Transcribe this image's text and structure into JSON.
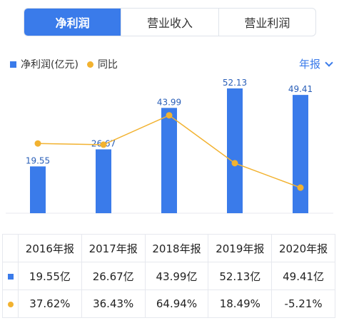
{
  "tabs": [
    {
      "label": "净利润",
      "active": true
    },
    {
      "label": "营业收入",
      "active": false
    },
    {
      "label": "营业利润",
      "active": false
    }
  ],
  "legend": {
    "bar_label": "净利润(亿元)",
    "line_label": "同比"
  },
  "period_selector": "年报",
  "colors": {
    "bar": "#3a7bea",
    "line": "#f2b230",
    "positive": "#d63a3a",
    "negative": "#2a9d4a"
  },
  "chart_data": {
    "type": "bar",
    "categories": [
      "2016年报",
      "2017年报",
      "2018年报",
      "2019年报",
      "2020年报"
    ],
    "series": [
      {
        "name": "净利润(亿元)",
        "type": "bar",
        "values": [
          19.55,
          26.67,
          43.99,
          52.13,
          49.41
        ],
        "labels": [
          "19.55",
          "26.67",
          "43.99",
          "52.13",
          "49.41"
        ]
      },
      {
        "name": "同比",
        "type": "line",
        "values": [
          37.62,
          36.43,
          64.94,
          18.49,
          -5.21
        ]
      }
    ],
    "y_bar_range": [
      0,
      56
    ],
    "y_line_range": [
      -30,
      100
    ]
  },
  "table": {
    "headers": [
      "2016年报",
      "2017年报",
      "2018年报",
      "2019年报",
      "2020年报"
    ],
    "rows": [
      {
        "icon": "bar-square-icon",
        "cells": [
          "19.55亿",
          "26.67亿",
          "43.99亿",
          "52.13亿",
          "49.41亿"
        ]
      },
      {
        "icon": "line-dot-icon",
        "cells": [
          "37.62%",
          "36.43%",
          "64.94%",
          "18.49%",
          "-5.21%"
        ]
      }
    ]
  }
}
